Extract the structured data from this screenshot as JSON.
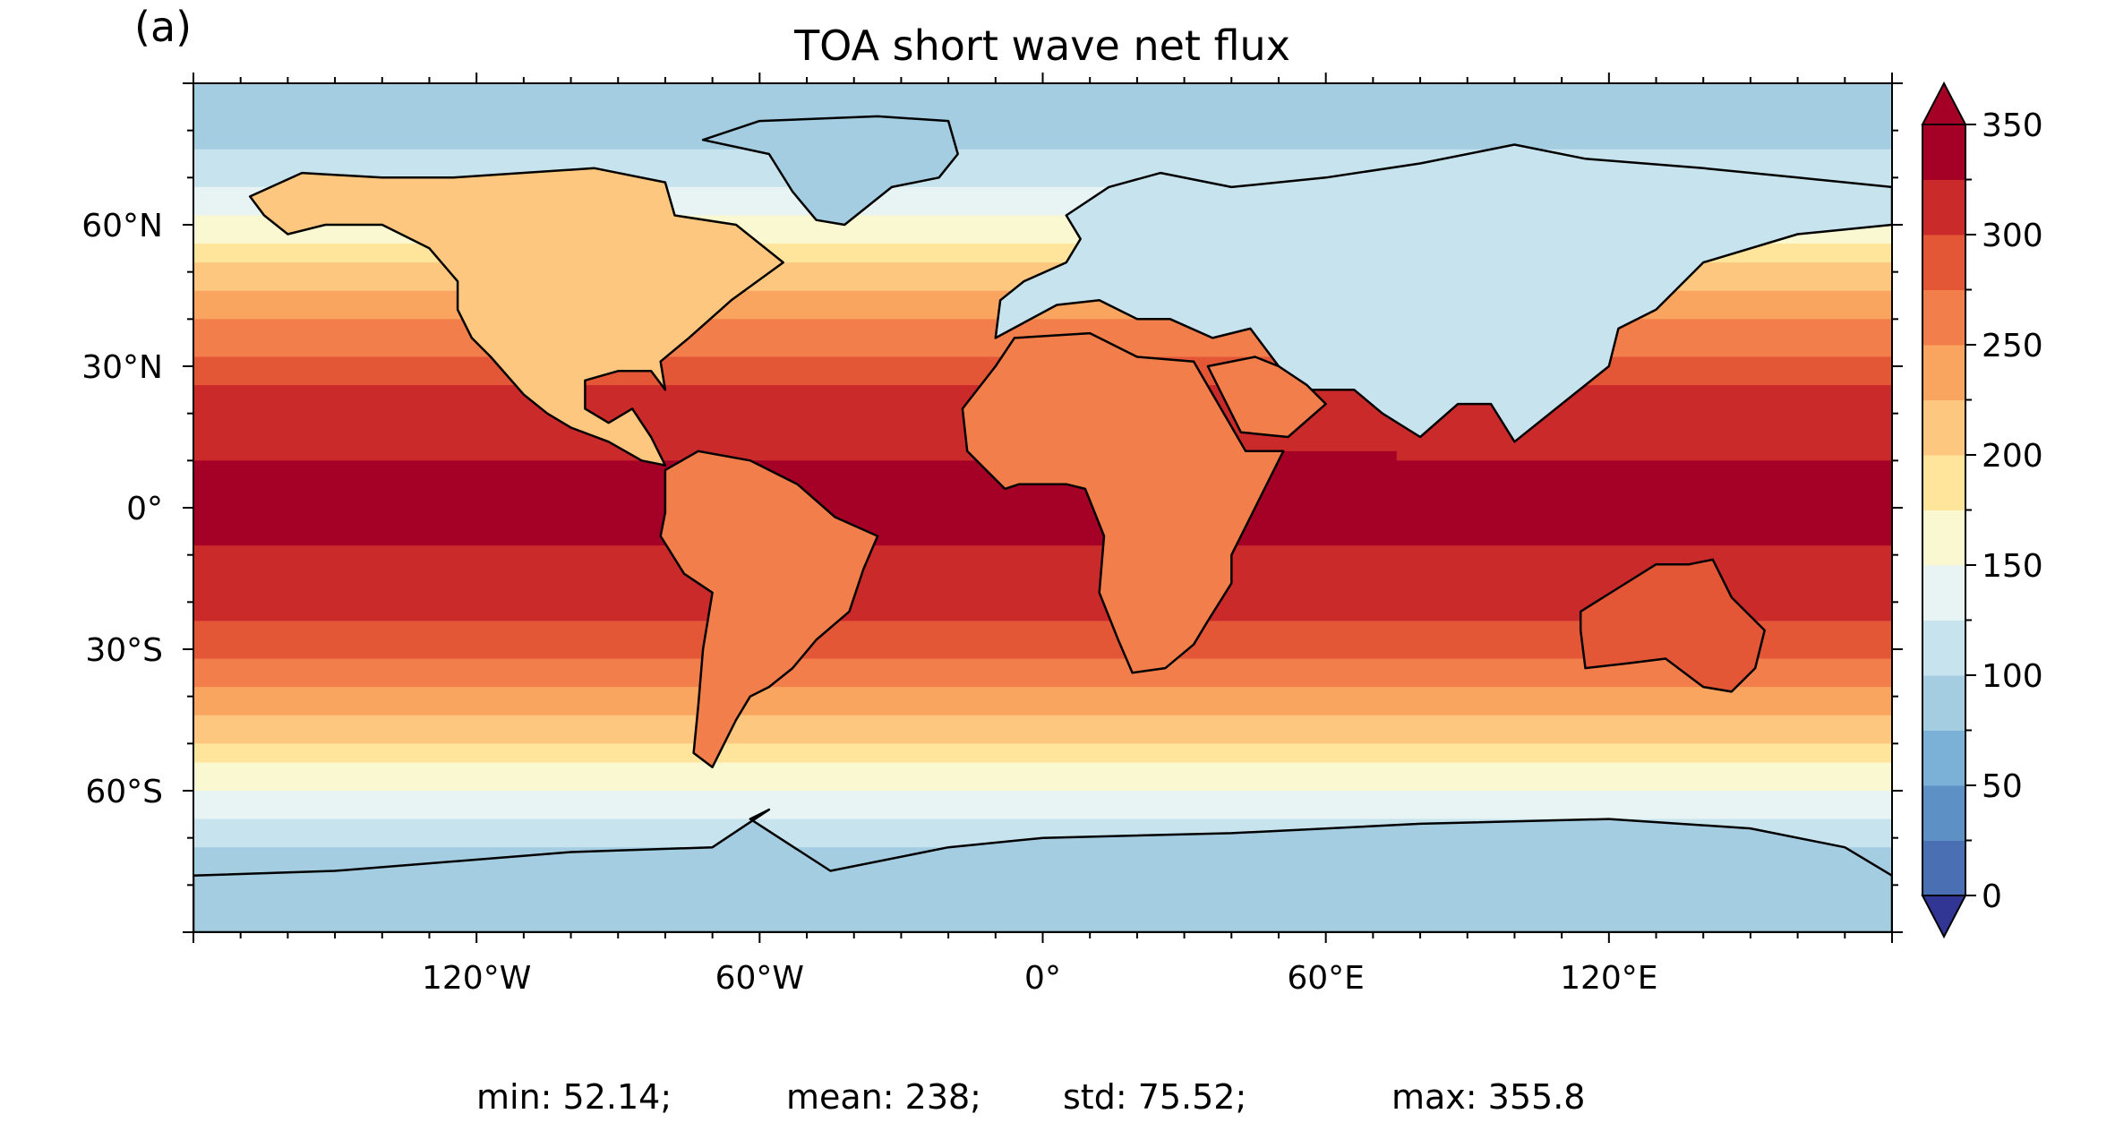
{
  "panel_label": "(a)",
  "title": "TOA short wave net flux",
  "stats": {
    "min": "min: 52.14;",
    "mean": "mean: 238;",
    "std": "std: 75.52;",
    "max": "max: 355.8"
  },
  "chart_data": {
    "type": "heatmap",
    "title": "TOA short wave net flux",
    "projection": "PlateCarree",
    "x_range": [
      -180,
      180
    ],
    "y_range": [
      -90,
      90
    ],
    "x_ticks": [
      {
        "value": -120,
        "label": "120°W"
      },
      {
        "value": -60,
        "label": "60°W"
      },
      {
        "value": 0,
        "label": "0°"
      },
      {
        "value": 60,
        "label": "60°E"
      },
      {
        "value": 120,
        "label": "120°E"
      }
    ],
    "y_ticks": [
      {
        "value": 60,
        "label": "60°N"
      },
      {
        "value": 30,
        "label": "30°N"
      },
      {
        "value": 0,
        "label": "0°"
      },
      {
        "value": -30,
        "label": "30°S"
      },
      {
        "value": -60,
        "label": "60°S"
      }
    ],
    "colorbar": {
      "range": [
        0,
        350
      ],
      "level_step": 25,
      "ticks": [
        0,
        50,
        100,
        150,
        200,
        250,
        300,
        350
      ],
      "extend": "both",
      "colormap": "RdYlBu_r",
      "colors": [
        "#4a6fb2",
        "#5d90c5",
        "#7bb1d6",
        "#a4cde2",
        "#c7e4ee",
        "#e7f4f3",
        "#f9f8d0",
        "#fee59b",
        "#fdc77f",
        "#f9a45f",
        "#f27e4c",
        "#e35737",
        "#cb2a2a",
        "#a50026"
      ],
      "under_color": "#313695",
      "over_color": "#a50026",
      "position": "right"
    },
    "zonal_mean_profile": [
      {
        "lat": 90,
        "value": 75
      },
      {
        "lat": 80,
        "value": 88
      },
      {
        "lat": 70,
        "value": 120
      },
      {
        "lat": 60,
        "value": 155
      },
      {
        "lat": 50,
        "value": 205
      },
      {
        "lat": 40,
        "value": 250
      },
      {
        "lat": 30,
        "value": 285
      },
      {
        "lat": 20,
        "value": 315
      },
      {
        "lat": 10,
        "value": 325
      },
      {
        "lat": 0,
        "value": 340
      },
      {
        "lat": -10,
        "value": 320
      },
      {
        "lat": -20,
        "value": 310
      },
      {
        "lat": -30,
        "value": 285
      },
      {
        "lat": -40,
        "value": 245
      },
      {
        "lat": -50,
        "value": 195
      },
      {
        "lat": -60,
        "value": 150
      },
      {
        "lat": -70,
        "value": 110
      },
      {
        "lat": -80,
        "value": 75
      },
      {
        "lat": -90,
        "value": 70
      }
    ],
    "statistics": {
      "min": 52.14,
      "mean": 238,
      "std": 75.52,
      "max": 355.8
    }
  }
}
